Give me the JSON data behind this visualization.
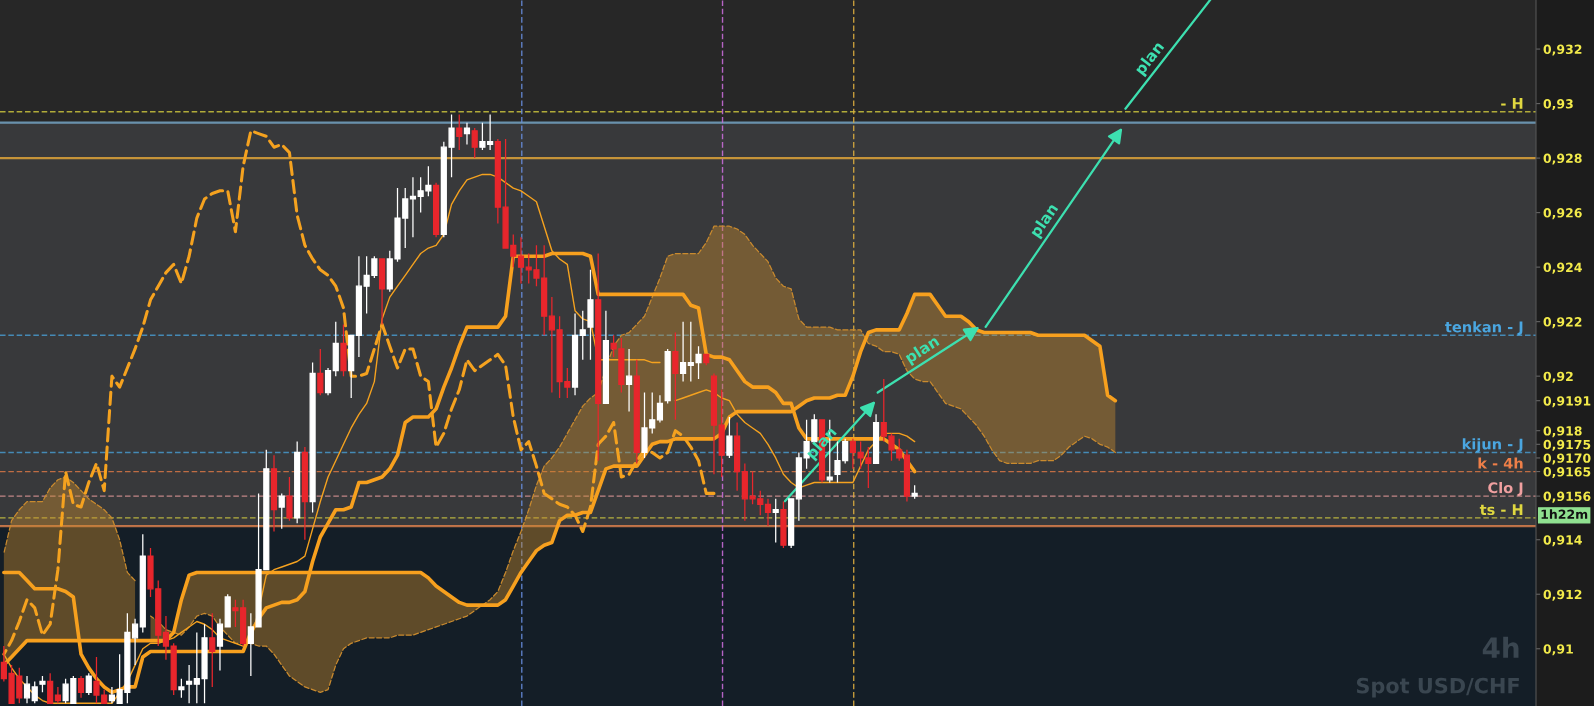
{
  "chart_data": {
    "type": "candlestick",
    "title": "Spot USD/CHF",
    "subtitle": "4h",
    "categories": [
      null,
      null,
      null,
      null,
      null,
      null,
      null,
      null,
      null,
      null,
      null,
      null,
      null,
      null,
      null,
      null,
      null,
      null,
      null,
      null,
      null,
      null,
      null,
      null,
      null,
      null,
      null,
      null,
      null,
      null,
      null,
      null,
      null,
      null,
      null,
      null,
      null,
      null,
      null,
      null,
      null,
      null,
      null,
      null,
      null,
      null,
      null,
      null,
      null,
      null,
      null,
      null,
      null,
      null,
      null,
      null,
      null,
      null,
      null,
      null,
      null,
      null,
      null,
      null,
      null,
      null,
      null,
      null,
      null,
      null,
      null,
      null,
      null,
      null,
      null,
      null,
      null,
      null,
      null,
      null,
      null,
      null,
      null,
      null,
      null,
      null,
      null,
      null,
      null,
      null,
      null,
      null,
      null,
      null,
      null,
      null,
      null,
      null,
      null,
      null,
      null,
      null,
      null,
      null,
      null,
      null,
      null,
      null,
      null,
      null,
      null,
      null,
      null,
      null,
      null,
      null,
      null,
      null,
      null,
      null,
      null,
      null,
      null,
      null,
      null,
      null,
      null,
      null,
      null,
      null,
      null,
      null,
      null,
      null,
      null,
      null,
      null,
      null,
      null,
      null,
      null,
      null,
      null,
      null,
      null,
      null,
      null,
      null,
      null,
      null,
      null,
      null,
      null,
      null,
      null,
      null,
      null,
      null,
      null,
      null,
      null,
      null,
      null,
      null,
      null,
      null,
      null,
      null,
      null,
      null,
      null,
      null,
      null,
      null,
      null,
      null,
      null,
      null,
      null,
      null,
      null,
      null,
      null,
      null,
      null,
      null,
      null,
      null,
      null,
      null,
      null,
      null,
      null,
      null,
      null,
      null,
      null,
      null,
      null
    ],
    "ohlc": [
      [
        0.9095,
        0.9101,
        0.9088,
        0.9089
      ],
      [
        0.9091,
        0.9094,
        0.908,
        0.908
      ],
      [
        0.909,
        0.9093,
        0.908,
        0.9082
      ],
      [
        0.9082,
        0.909,
        0.908,
        0.9087
      ],
      [
        0.9081,
        0.9088,
        0.908,
        0.9086
      ],
      [
        0.9087,
        0.909,
        0.9084,
        0.9088
      ],
      [
        0.9088,
        0.9091,
        0.908,
        0.908
      ],
      [
        0.9083,
        0.9086,
        0.908,
        0.9081
      ],
      [
        0.9081,
        0.9089,
        0.908,
        0.9087
      ],
      [
        0.908,
        0.909,
        0.908,
        0.9089
      ],
      [
        0.9089,
        0.909,
        0.9082,
        0.9084
      ],
      [
        0.9084,
        0.9091,
        0.9083,
        0.909
      ],
      [
        0.9088,
        0.9097,
        0.908,
        0.9083
      ],
      [
        0.9083,
        0.9085,
        0.908,
        0.908
      ],
      [
        0.9081,
        0.9086,
        0.908,
        0.9083
      ],
      [
        0.908,
        0.9098,
        0.908,
        0.9085
      ],
      [
        0.9084,
        0.9113,
        0.908,
        0.9106
      ],
      [
        0.9104,
        0.9111,
        0.9094,
        0.9109
      ],
      [
        0.9108,
        0.9142,
        0.9106,
        0.9134
      ],
      [
        0.9134,
        0.9137,
        0.9119,
        0.9122
      ],
      [
        0.9122,
        0.9125,
        0.9101,
        0.9105
      ],
      [
        0.9106,
        0.9112,
        0.9096,
        0.9101
      ],
      [
        0.9101,
        0.9102,
        0.9083,
        0.9085
      ],
      [
        0.9085,
        0.9089,
        0.9082,
        0.9086
      ],
      [
        0.9087,
        0.9094,
        0.908,
        0.9088
      ],
      [
        0.9087,
        0.9106,
        0.908,
        0.9089
      ],
      [
        0.9089,
        0.9109,
        0.908,
        0.9104
      ],
      [
        0.9104,
        0.9113,
        0.9086,
        0.9099
      ],
      [
        0.9101,
        0.9111,
        0.9092,
        0.9109
      ],
      [
        0.9108,
        0.912,
        0.9108,
        0.9119
      ],
      [
        0.9115,
        0.9118,
        0.9108,
        0.9114
      ],
      [
        0.9115,
        0.9118,
        0.9101,
        0.9102
      ],
      [
        0.9102,
        0.9113,
        0.909,
        0.9108
      ],
      [
        0.9108,
        0.9157,
        0.9108,
        0.9129
      ],
      [
        0.9129,
        0.9173,
        0.9129,
        0.9166
      ],
      [
        0.9166,
        0.9171,
        0.9143,
        0.9151
      ],
      [
        0.9152,
        0.9157,
        0.9144,
        0.9156
      ],
      [
        0.9156,
        0.9163,
        0.9147,
        0.9148
      ],
      [
        0.9148,
        0.9176,
        0.9146,
        0.9172
      ],
      [
        0.9172,
        0.9174,
        0.914,
        0.9154
      ],
      [
        0.9154,
        0.9205,
        0.915,
        0.9201
      ],
      [
        0.9201,
        0.921,
        0.9193,
        0.9194
      ],
      [
        0.9194,
        0.9203,
        0.9193,
        0.9202
      ],
      [
        0.9202,
        0.922,
        0.92,
        0.9212
      ],
      [
        0.9212,
        0.9219,
        0.92,
        0.9202
      ],
      [
        0.9202,
        0.9215,
        0.9192,
        0.9215
      ],
      [
        0.9215,
        0.9244,
        0.9207,
        0.9233
      ],
      [
        0.9233,
        0.9244,
        0.9223,
        0.9237
      ],
      [
        0.9237,
        0.9244,
        0.9236,
        0.9243
      ],
      [
        0.9243,
        0.9243,
        0.9219,
        0.9232
      ],
      [
        0.9232,
        0.9246,
        0.9231,
        0.9243
      ],
      [
        0.9243,
        0.9269,
        0.9242,
        0.9258
      ],
      [
        0.9258,
        0.9269,
        0.9247,
        0.9265
      ],
      [
        0.9265,
        0.9273,
        0.9251,
        0.9266
      ],
      [
        0.9266,
        0.9273,
        0.926,
        0.9268
      ],
      [
        0.9268,
        0.9277,
        0.9266,
        0.927
      ],
      [
        0.927,
        0.9271,
        0.9251,
        0.9252
      ],
      [
        0.9252,
        0.9286,
        0.9251,
        0.9284
      ],
      [
        0.9284,
        0.9296,
        0.9273,
        0.9291
      ],
      [
        0.9291,
        0.9296,
        0.9283,
        0.9288
      ],
      [
        0.9289,
        0.9293,
        0.9285,
        0.9291
      ],
      [
        0.929,
        0.9291,
        0.928,
        0.9284
      ],
      [
        0.9284,
        0.9293,
        0.9283,
        0.9286
      ],
      [
        0.9285,
        0.9296,
        0.9283,
        0.9286
      ],
      [
        0.9286,
        0.9287,
        0.9256,
        0.9262
      ],
      [
        0.9262,
        0.9287,
        0.9247,
        0.9247
      ],
      [
        0.9248,
        0.9252,
        0.924,
        0.9244
      ],
      [
        0.9244,
        0.9251,
        0.9234,
        0.924
      ],
      [
        0.924,
        0.9245,
        0.9234,
        0.9239
      ],
      [
        0.9239,
        0.9248,
        0.9233,
        0.9236
      ],
      [
        0.9236,
        0.9248,
        0.9215,
        0.9222
      ],
      [
        0.9222,
        0.9229,
        0.9194,
        0.9217
      ],
      [
        0.9217,
        0.9222,
        0.9192,
        0.9198
      ],
      [
        0.9198,
        0.9203,
        0.9192,
        0.9196
      ],
      [
        0.9196,
        0.9223,
        0.9193,
        0.9215
      ],
      [
        0.9215,
        0.9224,
        0.9206,
        0.9217
      ],
      [
        0.9218,
        0.9239,
        0.9206,
        0.9228
      ],
      [
        0.9228,
        0.9245,
        0.9169,
        0.919
      ],
      [
        0.919,
        0.9224,
        0.919,
        0.9213
      ],
      [
        0.9212,
        0.9215,
        0.9207,
        0.921
      ],
      [
        0.921,
        0.9214,
        0.9194,
        0.9197
      ],
      [
        0.9197,
        0.921,
        0.9187,
        0.92
      ],
      [
        0.92,
        0.9206,
        0.9168,
        0.9172
      ],
      [
        0.9172,
        0.9194,
        0.917,
        0.9181
      ],
      [
        0.9181,
        0.9194,
        0.9179,
        0.9184
      ],
      [
        0.9184,
        0.9193,
        0.9183,
        0.919
      ],
      [
        0.9191,
        0.921,
        0.919,
        0.9209
      ],
      [
        0.9209,
        0.9216,
        0.9184,
        0.9201
      ],
      [
        0.9201,
        0.922,
        0.9198,
        0.9205
      ],
      [
        0.9204,
        0.922,
        0.9198,
        0.9205
      ],
      [
        0.9205,
        0.9211,
        0.9199,
        0.9208
      ],
      [
        0.9208,
        0.9208,
        0.9204,
        0.9205
      ],
      [
        0.92,
        0.9201,
        0.9164,
        0.9182
      ],
      [
        0.9182,
        0.9195,
        0.9163,
        0.9171
      ],
      [
        0.9171,
        0.9185,
        0.917,
        0.9178
      ],
      [
        0.9178,
        0.9183,
        0.9158,
        0.9165
      ],
      [
        0.9165,
        0.9168,
        0.9147,
        0.9155
      ],
      [
        0.9156,
        0.9165,
        0.9153,
        0.9155
      ],
      [
        0.9155,
        0.9158,
        0.9149,
        0.9153
      ],
      [
        0.9153,
        0.9155,
        0.9145,
        0.915
      ],
      [
        0.915,
        0.9155,
        0.9139,
        0.9151
      ],
      [
        0.9151,
        0.9154,
        0.9137,
        0.9138
      ],
      [
        0.9138,
        0.9155,
        0.9137,
        0.9155
      ],
      [
        0.9155,
        0.9172,
        0.9147,
        0.917
      ],
      [
        0.917,
        0.9184,
        0.9166,
        0.9176
      ],
      [
        0.9176,
        0.9186,
        0.9175,
        0.9184
      ],
      [
        0.9184,
        0.9184,
        0.9161,
        0.9162
      ],
      [
        0.9162,
        0.9184,
        0.9161,
        0.9163
      ],
      [
        0.9164,
        0.9176,
        0.9161,
        0.9169
      ],
      [
        0.9169,
        0.9177,
        0.9168,
        0.9176
      ],
      [
        0.9176,
        0.9177,
        0.9166,
        0.9172
      ],
      [
        0.9172,
        0.9176,
        0.9166,
        0.917
      ],
      [
        0.917,
        0.9174,
        0.9159,
        0.9168
      ],
      [
        0.9168,
        0.9186,
        0.9168,
        0.9183
      ],
      [
        0.9183,
        0.9199,
        0.9176,
        0.9178
      ],
      [
        0.9178,
        0.9179,
        0.9169,
        0.9173
      ],
      [
        0.9173,
        0.9177,
        0.9169,
        0.917
      ],
      [
        0.9171,
        0.9173,
        0.9154,
        0.9156
      ],
      [
        0.9156,
        0.916,
        0.9155,
        0.9157
      ],
      null,
      null,
      null,
      null,
      null,
      null,
      null,
      null,
      null,
      null,
      null,
      null,
      null,
      null,
      null,
      null,
      null,
      null,
      null,
      null,
      null,
      null,
      null,
      null,
      null,
      null,
      null,
      null,
      null,
      null,
      null,
      null,
      null,
      null,
      null,
      null,
      null,
      null,
      null,
      null,
      null,
      null,
      null,
      null,
      null,
      null,
      null,
      null,
      null,
      null,
      null,
      null,
      null,
      null,
      null,
      null,
      null,
      null,
      null,
      null,
      null,
      null,
      null,
      null,
      null,
      null,
      null,
      null,
      null,
      null,
      null,
      null,
      null,
      null,
      null,
      null,
      null,
      null,
      null,
      null
    ],
    "series": [
      {
        "type": "line",
        "color": "#f5a21f",
        "line_style": "solid",
        "values": [
          0.9098,
          0.9093,
          0.9089,
          0.9086,
          0.9083,
          0.9081,
          0.908,
          0.908,
          0.908,
          0.908,
          0.908,
          0.908,
          0.908,
          0.908,
          0.908,
          0.9084,
          0.9088,
          0.9094,
          0.91,
          0.9102,
          0.9102,
          0.9103,
          0.9104,
          0.9106,
          0.9108,
          0.911,
          0.9109,
          0.9107,
          0.9104,
          0.9103,
          0.9102,
          0.9101,
          0.9103,
          0.9114,
          0.9127,
          0.9129,
          0.913,
          0.9131,
          0.9132,
          0.9134,
          0.9144,
          0.9154,
          0.9163,
          0.9169,
          0.9175,
          0.9181,
          0.9186,
          0.919,
          0.9198,
          0.9221,
          0.9229,
          0.9233,
          0.9237,
          0.9241,
          0.9245,
          0.9247,
          0.9248,
          0.9252,
          0.9263,
          0.9268,
          0.9272,
          0.9273,
          0.9274,
          0.9274,
          0.9273,
          0.9271,
          0.9269,
          0.9268,
          0.9266,
          0.9264,
          0.9255,
          0.9246,
          0.9243,
          0.9241,
          0.9224,
          0.9221,
          0.922,
          0.9206,
          0.9206,
          0.9206,
          0.9206,
          0.9206,
          0.9206,
          0.9206,
          0.9205,
          0.9205,
          null,
          0.9191,
          0.9192,
          0.9193,
          0.9194,
          0.9195,
          0.9194,
          0.9192,
          0.9191,
          0.9186,
          0.9183,
          0.9181,
          0.9179,
          0.9175,
          0.917,
          0.9164,
          0.9161,
          0.9159,
          0.916,
          0.9161,
          0.9161,
          0.9161,
          0.9161,
          0.9161,
          0.9161,
          0.9167,
          0.9173,
          0.9176,
          0.9179,
          0.9179,
          0.9179,
          0.9178,
          0.9176,
          null,
          null,
          null,
          null,
          null,
          null,
          null,
          null,
          null,
          null,
          null,
          null,
          null,
          null,
          null,
          null,
          null,
          null,
          null,
          null,
          null,
          null,
          null,
          null,
          null,
          null,
          null,
          null,
          null,
          null,
          null,
          null,
          null,
          null,
          null,
          null,
          null,
          null,
          null,
          null,
          null,
          null,
          null,
          null,
          null,
          null,
          null,
          null,
          null,
          null,
          null,
          null,
          null,
          null,
          null,
          null,
          null,
          null,
          null,
          null,
          null,
          null,
          null,
          null,
          null,
          null,
          null,
          null,
          null,
          null,
          null,
          null,
          null,
          null,
          null,
          null,
          null,
          null,
          null,
          null
        ]
      },
      {
        "type": "line",
        "color": "#f7a01e",
        "line_style": "solid",
        "values": [
          0.9128,
          0.9128,
          0.9128,
          0.9125,
          0.9122,
          0.9122,
          0.9122,
          0.9122,
          0.9121,
          0.9119,
          0.9098,
          0.9093,
          0.9089,
          0.9086,
          0.9084,
          0.9085,
          0.9086,
          0.9086,
          0.9097,
          0.9099,
          0.9099,
          0.9099,
          0.9099,
          0.9099,
          0.9099,
          0.9099,
          0.9099,
          0.9099,
          0.9099,
          0.9099,
          0.9099,
          0.9099,
          0.9106,
          0.9111,
          0.9115,
          0.9116,
          0.9117,
          0.9117,
          0.9118,
          0.9121,
          0.9132,
          0.9141,
          0.9146,
          0.9151,
          0.9151,
          0.9152,
          0.9161,
          0.9161,
          0.9162,
          0.9163,
          0.9166,
          0.9171,
          0.9183,
          0.9185,
          0.9185,
          0.9185,
          0.9188,
          0.9196,
          0.9203,
          0.9211,
          0.9218,
          0.9218,
          0.9218,
          0.9218,
          0.9218,
          0.9222,
          0.9244,
          0.9244,
          0.9244,
          0.9244,
          0.9244,
          0.9245,
          0.9245,
          0.9245,
          0.9245,
          0.9245,
          0.9244,
          0.923,
          0.923,
          0.923,
          0.923,
          0.923,
          0.923,
          0.923,
          0.923,
          0.923,
          0.923,
          0.923,
          0.923,
          0.9226,
          0.9225,
          0.9208,
          0.9207,
          0.9207,
          0.9206,
          0.9202,
          0.9198,
          0.9196,
          0.9196,
          0.9196,
          0.9194,
          0.919,
          0.919,
          0.9181,
          0.9177,
          0.9177,
          0.9177,
          0.9177,
          0.9177,
          0.9177,
          0.9177,
          0.9177,
          0.9177,
          0.9177,
          0.9177,
          0.9175,
          0.9173,
          0.9169,
          0.9165,
          null,
          null,
          null,
          null,
          null,
          null,
          null,
          null,
          null,
          null,
          null,
          null,
          null,
          null,
          null,
          null,
          null,
          null,
          null,
          null,
          null,
          null,
          null,
          null,
          null,
          null,
          null,
          null,
          null,
          null,
          null,
          null,
          null,
          null,
          null,
          null,
          null,
          null,
          null,
          null,
          null,
          null,
          null,
          null,
          null,
          null,
          null,
          null,
          null,
          null,
          null,
          null,
          null,
          null,
          null,
          null,
          null,
          null,
          null,
          null,
          null,
          null,
          null,
          null,
          null,
          null,
          null,
          null,
          null,
          null,
          null,
          null,
          null,
          null,
          null,
          null,
          null,
          null,
          null,
          null
        ]
      },
      {
        "type": "line",
        "color": "#f5a21f",
        "line_style": "dashed",
        "values": [
          0.9098,
          0.9103,
          0.911,
          0.9118,
          0.9115,
          0.9105,
          0.9109,
          0.9129,
          0.9165,
          0.9153,
          0.9152,
          0.9161,
          0.9168,
          0.9158,
          0.92,
          0.9196,
          0.9203,
          0.921,
          0.9218,
          0.9228,
          0.9233,
          0.9238,
          0.9241,
          0.9234,
          0.9244,
          0.9258,
          0.9265,
          0.9267,
          0.9268,
          0.9268,
          0.9253,
          0.9277,
          0.929,
          0.9289,
          0.9288,
          0.9284,
          0.9285,
          0.9282,
          0.9259,
          0.9248,
          0.9243,
          0.9239,
          0.9237,
          0.9233,
          0.9225,
          0.92,
          0.92,
          0.9201,
          0.921,
          0.9219,
          0.9211,
          0.9203,
          0.921,
          0.921,
          0.92,
          0.9198,
          0.9174,
          0.9179,
          0.9188,
          0.9195,
          0.9206,
          0.9202,
          0.9204,
          0.9206,
          0.9208,
          0.9204,
          0.9185,
          0.9173,
          0.9176,
          0.9167,
          0.9157,
          0.9155,
          0.9153,
          0.9152,
          0.9149,
          0.9143,
          0.9152,
          0.9175,
          0.9178,
          0.9183,
          0.9163,
          0.9164,
          0.9169,
          0.9173,
          0.9172,
          0.917,
          0.9172,
          0.918,
          0.9178,
          0.9174,
          0.9169,
          0.9157,
          0.9157,
          null,
          null,
          null,
          null,
          null,
          null,
          null,
          null,
          null,
          null,
          null,
          null,
          null,
          null,
          null,
          null,
          null,
          null,
          null,
          null,
          null,
          null,
          null,
          null,
          null,
          null,
          null,
          null,
          null,
          null,
          null,
          null,
          null,
          null,
          null,
          null,
          null,
          null,
          null,
          null,
          null,
          null,
          null,
          null,
          null,
          null,
          null,
          null,
          null,
          null,
          null,
          null,
          null,
          null,
          null,
          null,
          null,
          null,
          null,
          null,
          null,
          null,
          null,
          null,
          null,
          null,
          null,
          null,
          null,
          null,
          null,
          null,
          null,
          null,
          null,
          null,
          null,
          null,
          null,
          null,
          null,
          null,
          null,
          null,
          null,
          null,
          null,
          null,
          null,
          null,
          null,
          null,
          null,
          null,
          null,
          null,
          null,
          null,
          null,
          null,
          null,
          null,
          null,
          null,
          null,
          null
        ]
      },
      {
        "type": "line",
        "color": "#f7a01e",
        "line_style": "solid",
        "values": [
          0.9094,
          0.9097,
          0.91,
          0.9103,
          0.9103,
          0.9103,
          0.9103,
          0.9103,
          0.9103,
          0.9103,
          0.9103,
          0.9103,
          0.9103,
          0.9103,
          0.9103,
          0.9103,
          0.9103,
          0.9103,
          0.9103,
          0.9103,
          0.9103,
          0.9103,
          0.9106,
          0.9118,
          0.9127,
          0.9128,
          0.9128,
          0.9128,
          0.9128,
          0.9128,
          0.9128,
          0.9128,
          0.9128,
          0.9128,
          0.9128,
          0.9128,
          0.9128,
          0.9128,
          0.9128,
          0.9128,
          0.9128,
          0.9128,
          0.9128,
          0.9128,
          0.9128,
          0.9128,
          0.9128,
          0.9128,
          0.9128,
          0.9128,
          0.9128,
          0.9128,
          0.9128,
          0.9128,
          0.9128,
          0.9126,
          0.9123,
          0.9121,
          0.9119,
          0.9117,
          0.9116,
          0.9116,
          0.9116,
          0.9116,
          0.9116,
          0.9118,
          0.9123,
          0.9128,
          0.9132,
          0.9136,
          0.9138,
          0.9139,
          0.9147,
          0.9149,
          0.9149,
          0.915,
          0.915,
          0.9158,
          0.9166,
          0.9167,
          0.9167,
          0.9167,
          0.9167,
          0.9171,
          0.9175,
          0.9176,
          0.9176,
          0.9177,
          0.9177,
          0.9177,
          0.9177,
          0.9177,
          0.9177,
          0.9179,
          0.9185,
          0.9187,
          0.9187,
          0.9187,
          0.9187,
          0.9187,
          0.9187,
          0.9187,
          0.9187,
          0.9189,
          0.9191,
          0.9192,
          0.9192,
          0.9192,
          0.9193,
          0.9193,
          0.92,
          0.9209,
          0.9216,
          0.9217,
          0.9217,
          0.9217,
          0.9217,
          0.9223,
          0.923,
          0.923,
          0.923,
          0.9226,
          0.9222,
          0.9222,
          0.9222,
          0.922,
          0.9217,
          0.9216,
          0.9216,
          0.9216,
          0.9216,
          0.9216,
          0.9216,
          0.9216,
          0.9215,
          0.9215,
          0.9215,
          0.9215,
          0.9215,
          0.9215,
          0.9215,
          0.9213,
          0.9211,
          0.9193,
          0.9191,
          null,
          null,
          null,
          null,
          null,
          null,
          null,
          null,
          null,
          null,
          null,
          null,
          null,
          null,
          null,
          null,
          null,
          null,
          null,
          null,
          null,
          null,
          null,
          null,
          null,
          null,
          null,
          null,
          null,
          null,
          null,
          null,
          null,
          null,
          null,
          null,
          null,
          null,
          null,
          null,
          null,
          null,
          null,
          null,
          null,
          null,
          null,
          null,
          null,
          null,
          null,
          null,
          null,
          null
        ]
      },
      {
        "type": "line",
        "color": "#c98a2e",
        "line_style": "dashed",
        "values": [
          0.9135,
          0.9147,
          0.9151,
          0.9154,
          0.9154,
          0.9154,
          0.9159,
          0.9162,
          0.9163,
          0.9161,
          0.9158,
          0.9155,
          0.9153,
          0.9151,
          0.9148,
          0.914,
          0.9128,
          0.9125,
          null,
          0.9112,
          0.911,
          0.9107,
          0.9106,
          0.9105,
          0.9108,
          0.9112,
          0.9113,
          0.9112,
          0.9108,
          0.9105,
          0.9102,
          0.9102,
          0.9102,
          0.9101,
          0.9101,
          0.9098,
          0.9094,
          0.909,
          0.9088,
          0.9086,
          0.9085,
          0.9084,
          0.9085,
          0.9094,
          0.91,
          0.9102,
          0.9103,
          0.9104,
          0.9104,
          0.9104,
          0.9104,
          0.9105,
          0.9105,
          0.9105,
          0.9106,
          0.9107,
          0.9108,
          0.9109,
          0.911,
          0.9111,
          0.9112,
          0.9114,
          0.9116,
          0.9118,
          0.9121,
          0.9128,
          0.9136,
          0.9143,
          0.9151,
          0.916,
          0.9167,
          0.917,
          0.9174,
          0.9179,
          0.9184,
          0.9189,
          0.9192,
          0.9194,
          0.9203,
          0.9211,
          0.9215,
          0.9216,
          0.9219,
          0.9222,
          0.9229,
          0.9236,
          0.9244,
          0.9245,
          0.9245,
          0.9245,
          0.9245,
          0.9249,
          0.9255,
          0.9255,
          0.9255,
          0.9254,
          0.9252,
          0.9248,
          0.9245,
          0.9242,
          0.9236,
          0.9233,
          0.9232,
          0.9221,
          0.9218,
          0.9218,
          0.9218,
          0.9218,
          0.9217,
          0.9217,
          0.9217,
          0.9217,
          0.9212,
          0.9211,
          0.9209,
          0.9209,
          0.9208,
          0.9202,
          0.9199,
          0.9198,
          0.9198,
          0.9194,
          0.919,
          0.9189,
          0.9188,
          0.9185,
          0.9182,
          0.9178,
          0.9173,
          0.9169,
          0.9168,
          0.9168,
          0.9168,
          0.9168,
          0.9169,
          0.9169,
          0.9169,
          0.9171,
          0.9174,
          0.9176,
          0.9178,
          0.9177,
          0.9175,
          0.9174,
          0.9172,
          null,
          null,
          null,
          null,
          null,
          null,
          null,
          null,
          null,
          null,
          null,
          null,
          null,
          null,
          null,
          null,
          null,
          null,
          null,
          null,
          null,
          null,
          null,
          null,
          null,
          null,
          null,
          null,
          null,
          null,
          null,
          null,
          null,
          null,
          null,
          null,
          null,
          null,
          null,
          null,
          null,
          null,
          null,
          null,
          null,
          null,
          null,
          null,
          null,
          null,
          null,
          null,
          null,
          null
        ]
      }
    ],
    "ylim": [
      0.9079,
      0.9338
    ],
    "yticks": [
      {
        "value": 0.91,
        "label": "0,91"
      },
      {
        "value": 0.912,
        "label": "0,912"
      },
      {
        "value": 0.914,
        "label": "0,914"
      },
      {
        "value": 0.9156,
        "label": "0,9156"
      },
      {
        "value": 0.9165,
        "label": "0,9165"
      },
      {
        "value": 0.917,
        "label": "0,9170"
      },
      {
        "value": 0.9175,
        "label": "0,9175"
      },
      {
        "value": 0.918,
        "label": "0,918"
      },
      {
        "value": 0.9191,
        "label": "0,9191"
      },
      {
        "value": 0.92,
        "label": "0,92"
      },
      {
        "value": 0.922,
        "label": "0,922"
      },
      {
        "value": 0.924,
        "label": "0,924"
      },
      {
        "value": 0.926,
        "label": "0,926"
      },
      {
        "value": 0.928,
        "label": "0,928"
      },
      {
        "value": 0.93,
        "label": "0,93"
      },
      {
        "value": 0.932,
        "label": "0,932"
      }
    ],
    "tick_labels": "y",
    "bands": [
      {
        "axis": "y",
        "from": 0.9079,
        "to": 0.9145,
        "color": "#141e27"
      },
      {
        "axis": "y",
        "from": 0.9145,
        "to": 0.9293,
        "color": "#38393b"
      }
    ],
    "ref_lines": [
      {
        "axis": "y",
        "value": 0.9297,
        "label": "- H",
        "color": "#e0d840",
        "line_style": "dashed"
      },
      {
        "axis": "y",
        "value": 0.9293,
        "color": "#7fb4d8",
        "line_style": "solid"
      },
      {
        "axis": "y",
        "value": 0.928,
        "color": "#f5b33a",
        "line_style": "solid"
      },
      {
        "axis": "y",
        "value": 0.9215,
        "label": "tenkan - J",
        "color": "#4aa6e0",
        "line_style": "dashed"
      },
      {
        "axis": "y",
        "value": 0.9172,
        "label": "kijun - J",
        "color": "#4aa6e0",
        "line_style": "dashed"
      },
      {
        "axis": "y",
        "value": 0.9165,
        "label": "k - 4h",
        "color": "#ee7f48",
        "line_style": "dashed"
      },
      {
        "axis": "y",
        "value": 0.9156,
        "label": "Clo J",
        "color": "#f0a0a0",
        "line_style": "dashed"
      },
      {
        "axis": "y",
        "value": 0.9148,
        "label": "ts - H",
        "color": "#e0d840",
        "line_style": "dashed"
      },
      {
        "axis": "y",
        "value": 0.9145,
        "color": "#f08a50",
        "line_style": "solid"
      }
    ],
    "annotations": [
      "plan",
      "plan",
      "plan",
      "plan",
      "1h22m"
    ]
  }
}
